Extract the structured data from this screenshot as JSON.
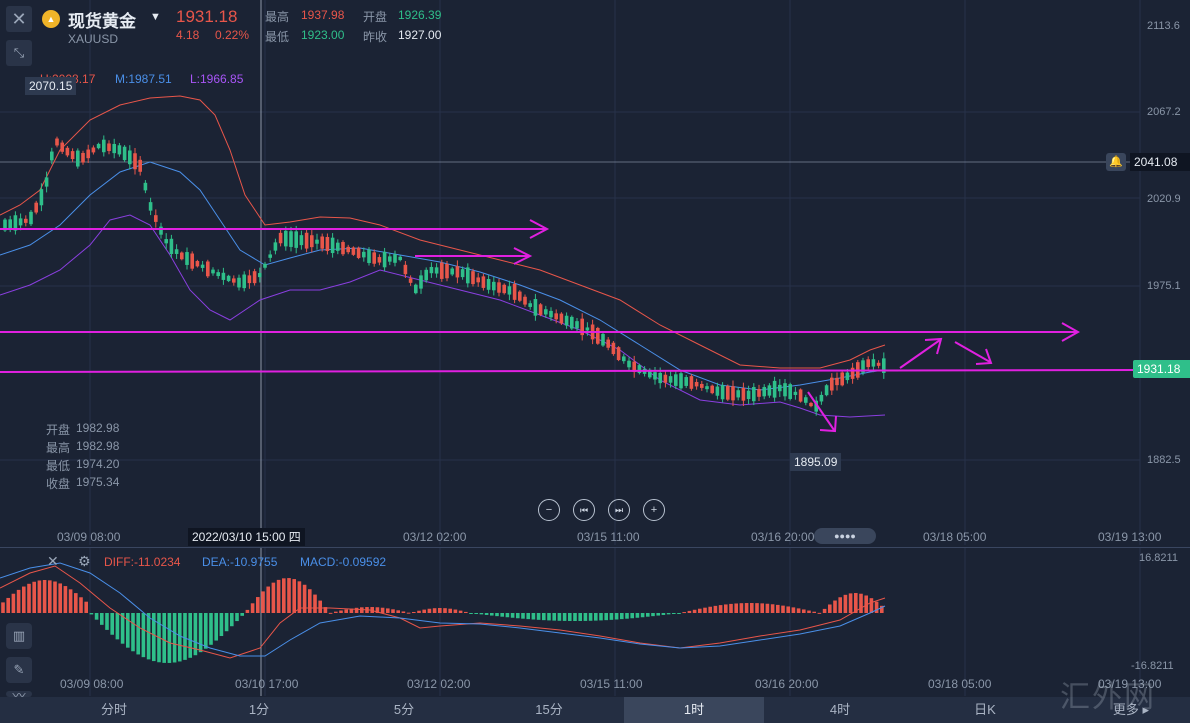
{
  "header": {
    "instrument_name": "现货黄金",
    "symbol": "XAUUSD",
    "price": "1931.18",
    "change": "4.18",
    "change_pct": "0.22%",
    "high_label": "最高",
    "high": "1937.98",
    "open_label": "开盘",
    "open": "1926.39",
    "low_label": "最低",
    "low": "1923.00",
    "prev_close_label": "昨收",
    "prev_close": "1927.00"
  },
  "bollinger": {
    "upper": "U:2008.17",
    "middle": "M:1987.51",
    "lower": "L:1966.85"
  },
  "price_axis": [
    "2113.6",
    "2067.2",
    "2020.9",
    "1975.1",
    "1882.5"
  ],
  "alert_line_price": "2041.08",
  "current_price_tag": "1931.18",
  "max_marker": "2070.15",
  "min_marker": "1895.09",
  "crosshair_time": "2022/03/10 15:00 四",
  "ohlc_panel": {
    "open_label": "开盘",
    "open": "1982.98",
    "high_label": "最高",
    "high": "1982.98",
    "low_label": "最低",
    "low": "1974.20",
    "close_label": "收盘",
    "close": "1975.34"
  },
  "time_axis": [
    "03/09 08:00",
    "03/12 02:00",
    "03/15 11:00",
    "03/16 20:00",
    "03/18 05:00",
    "03/19 13:00"
  ],
  "macd": {
    "diff": "DIFF:-11.0234",
    "dea": "DEA:-10.9755",
    "macd": "MACD:-0.09592",
    "axis_top": "16.8211",
    "axis_bottom": "-16.8211",
    "time_axis": [
      "03/09 08:00",
      "03/10 17:00",
      "03/12 02:00",
      "03/15 11:00",
      "03/16 20:00",
      "03/18 05:00",
      "03/19 13:00"
    ]
  },
  "timeframes": [
    "分时",
    "1分",
    "5分",
    "15分",
    "1时",
    "4时",
    "日K"
  ],
  "active_timeframe": "1时",
  "more_label": "更多",
  "watermark": "汇外网",
  "colors": {
    "up": "#e8564a",
    "down": "#2fbf8a",
    "annotation": "#e020e0",
    "background": "#1b2334"
  }
}
